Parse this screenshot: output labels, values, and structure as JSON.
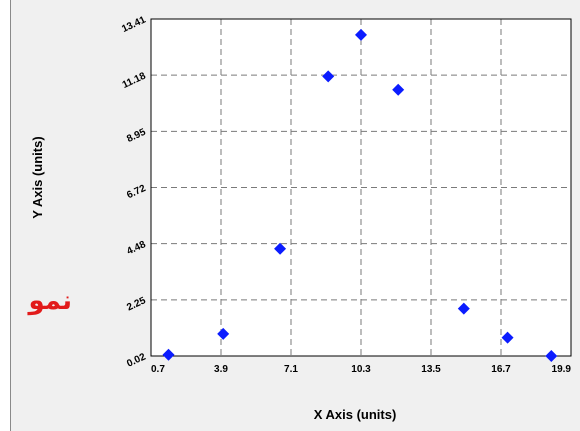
{
  "side_text": "نمو",
  "colors": {
    "marker": "#0b1cff",
    "grid": "#7a7a7a",
    "plot_bg": "#ffffff",
    "page_bg": "#f0f0f0",
    "side_text": "#e21b1b"
  },
  "chart_data": {
    "type": "scatter",
    "title": "",
    "xlabel": "X Axis (units)",
    "ylabel": "Y Axis (units)",
    "xlim": [
      0.7,
      19.9
    ],
    "ylim": [
      0.02,
      13.41
    ],
    "xticks": [
      "0.7",
      "3.9",
      "7.1",
      "10.3",
      "13.5",
      "16.7",
      "19.9"
    ],
    "yticks": [
      "0.02",
      "2.25",
      "4.48",
      "6.72",
      "8.95",
      "11.18",
      "13.41"
    ],
    "grid": true,
    "legend": "none",
    "marker": "diamond",
    "series": [
      {
        "x": [
          1.5,
          4.0,
          6.6,
          8.8,
          10.3,
          12.0,
          15.0,
          17.0,
          19.0
        ],
        "y": [
          0.07,
          0.9,
          4.28,
          11.13,
          12.78,
          10.6,
          1.9,
          0.75,
          0.02
        ]
      }
    ]
  }
}
